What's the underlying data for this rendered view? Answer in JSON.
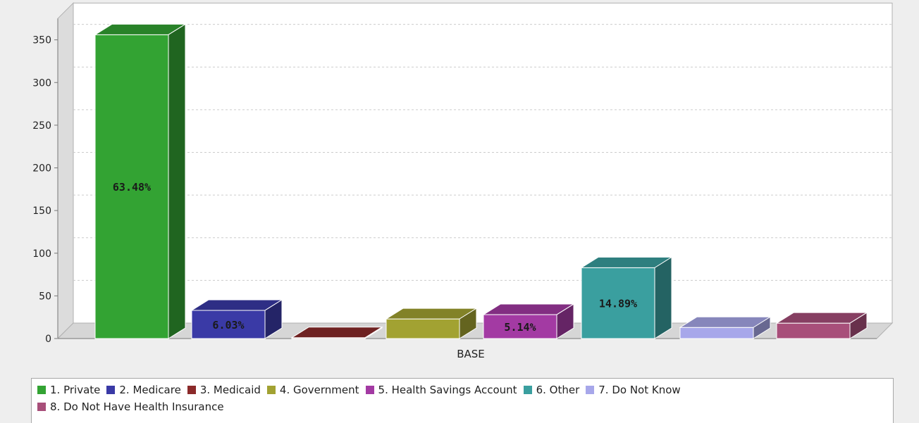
{
  "chart_data": {
    "type": "bar",
    "x_category": "BASE",
    "xlabel": "",
    "ylabel": "",
    "ylim": [
      0,
      375
    ],
    "yticks": [
      0,
      50,
      100,
      150,
      200,
      250,
      300,
      350
    ],
    "grid": true,
    "legend_position": "bottom",
    "series": [
      {
        "name": "1. Private",
        "value": 356,
        "label": "63.48%",
        "color": "#33a333"
      },
      {
        "name": "2. Medicare",
        "value": 33,
        "label": "6.03%",
        "color": "#3a3aa6"
      },
      {
        "name": "3. Medicaid",
        "value": 1,
        "label": "",
        "color": "#8b2a2a"
      },
      {
        "name": "4. Government",
        "value": 23,
        "label": "",
        "color": "#a2a232"
      },
      {
        "name": "5. Health Savings Account",
        "value": 28,
        "label": "5.14%",
        "color": "#a33aa3"
      },
      {
        "name": "6. Other",
        "value": 83,
        "label": "14.89%",
        "color": "#3a9f9f"
      },
      {
        "name": "7. Do Not Know",
        "value": 13,
        "label": "",
        "color": "#a7a7ea"
      },
      {
        "name": "8. Do Not Have Health Insurance",
        "value": 18,
        "label": "",
        "color": "#a84f7a"
      }
    ]
  }
}
